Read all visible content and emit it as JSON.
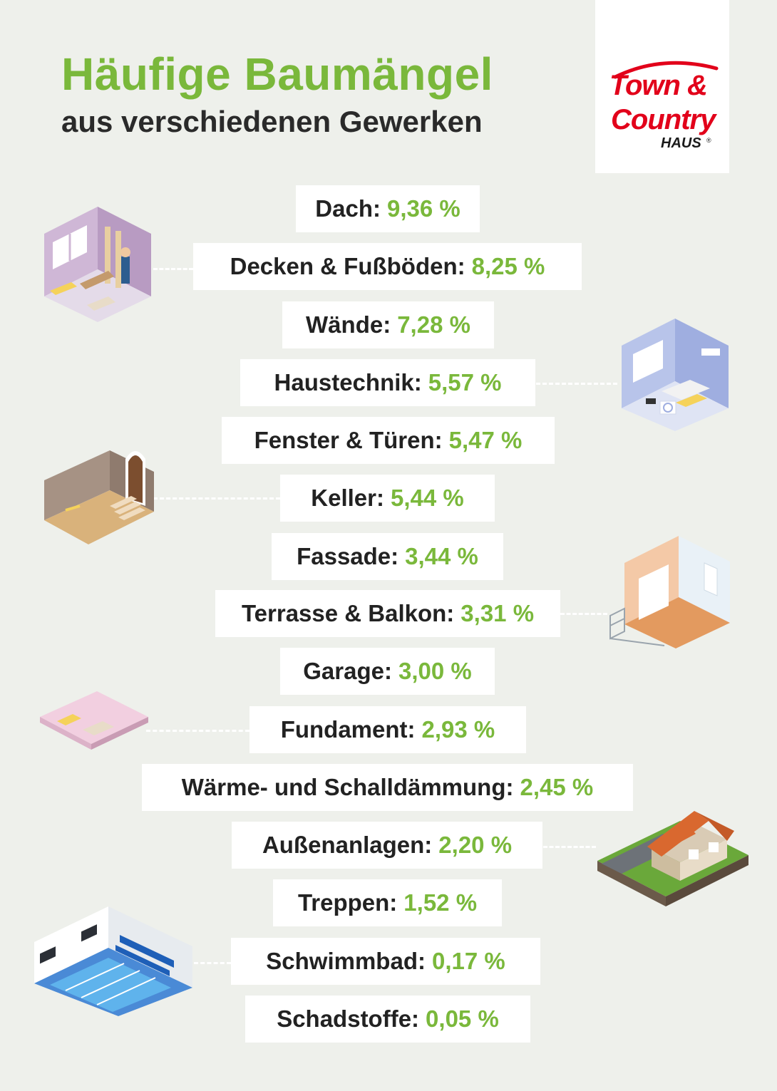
{
  "header": {
    "title": "Häufige Baumängel",
    "subtitle": "aus verschiedenen Gewerken"
  },
  "logo": {
    "line1": "Town &",
    "line2": "Country",
    "line3": "HAUS",
    "mark": "®"
  },
  "colors": {
    "accent_green": "#7ab83b",
    "text_dark": "#222222",
    "logo_red": "#e2001a",
    "background": "#eef0eb"
  },
  "items": [
    {
      "label": "Dach:",
      "value": "9,36 %"
    },
    {
      "label": "Decken & Fußböden:",
      "value": "8,25 %"
    },
    {
      "label": "Wände:",
      "value": "7,28 %"
    },
    {
      "label": "Haustechnik:",
      "value": "5,57 %"
    },
    {
      "label": "Fenster & Türen:",
      "value": "5,47 %"
    },
    {
      "label": "Keller:",
      "value": "5,44 %"
    },
    {
      "label": "Fassade:",
      "value": "3,44 %"
    },
    {
      "label": "Terrasse & Balkon:",
      "value": "3,31 %"
    },
    {
      "label": "Garage:",
      "value": "3,00 %"
    },
    {
      "label": "Fundament:",
      "value": "2,93 %"
    },
    {
      "label": "Wärme- und Schalldämmung:",
      "value": "2,45 %"
    },
    {
      "label": "Außenanlagen:",
      "value": "2,20 %"
    },
    {
      "label": "Treppen:",
      "value": "1,52 %"
    },
    {
      "label": "Schwimmbad:",
      "value": "0,17 %"
    },
    {
      "label": "Schadstoffe:",
      "value": "0,05 %"
    }
  ],
  "illustrations": [
    {
      "icon": "renovation-room-icon"
    },
    {
      "icon": "technical-room-icon"
    },
    {
      "icon": "basement-stairs-icon"
    },
    {
      "icon": "balcony-room-icon"
    },
    {
      "icon": "foundation-slab-icon"
    },
    {
      "icon": "house-outdoor-icon"
    },
    {
      "icon": "swimming-pool-icon"
    }
  ]
}
